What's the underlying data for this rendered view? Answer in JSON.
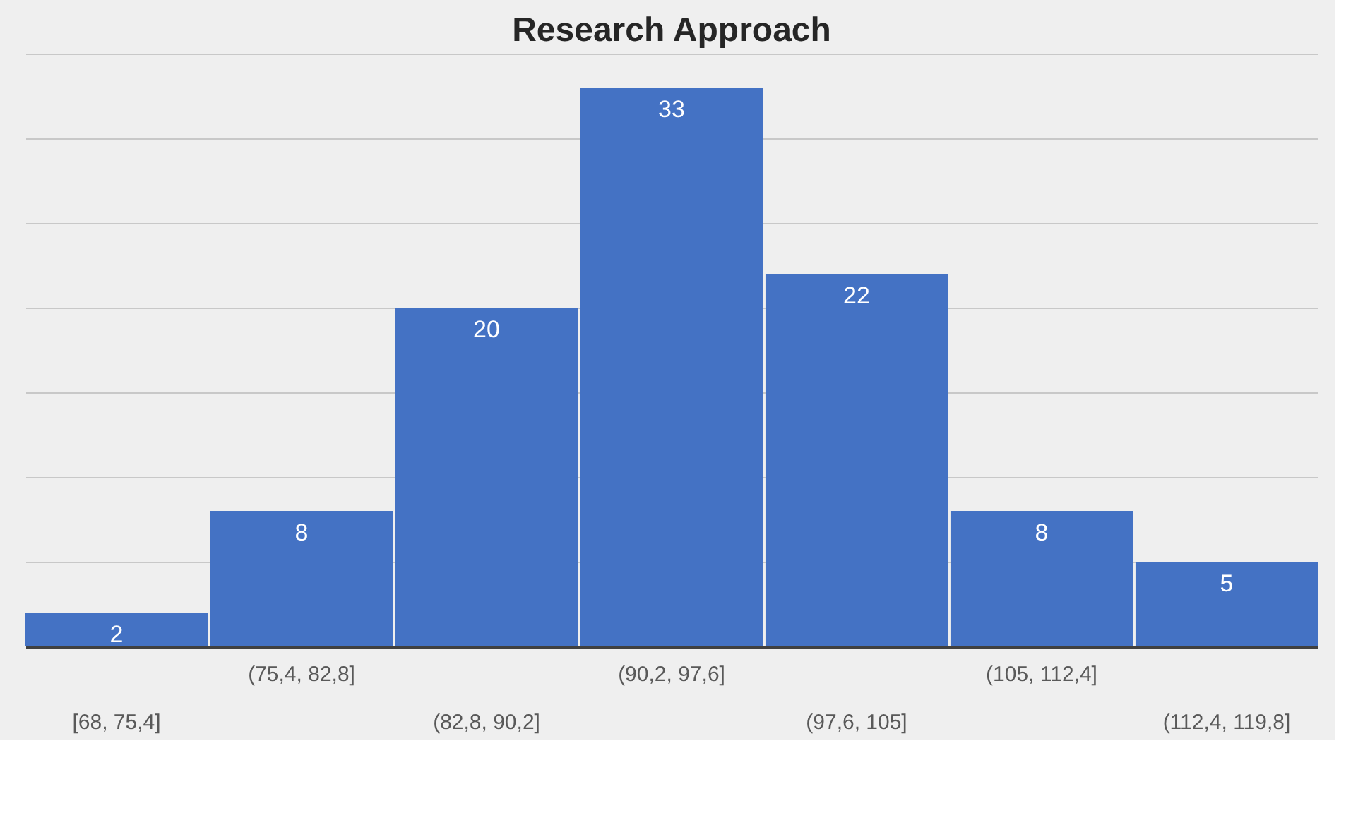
{
  "chart_data": {
    "type": "bar",
    "title": "Research Approach",
    "categories": [
      "[68, 75,4]",
      "(75,4, 82,8]",
      "(82,8, 90,2]",
      "(90,2, 97,6]",
      "(97,6, 105]",
      "(105, 112,4]",
      "(112,4, 119,8]"
    ],
    "values": [
      2,
      8,
      20,
      33,
      22,
      8,
      5
    ],
    "color": "#4472c4",
    "ylim": [
      0,
      35
    ],
    "yticks": [
      {
        "value": 0,
        "label": null
      },
      {
        "value": 5,
        "label": null
      },
      {
        "value": 10,
        "label": null
      },
      {
        "value": 15,
        "label": null
      },
      {
        "value": 20,
        "label": null
      },
      {
        "value": 25,
        "label": null
      },
      {
        "value": 30,
        "label": null
      },
      {
        "value": 35,
        "label": null
      }
    ],
    "tick_labels": "x",
    "grid": "y",
    "data_labels": true
  }
}
